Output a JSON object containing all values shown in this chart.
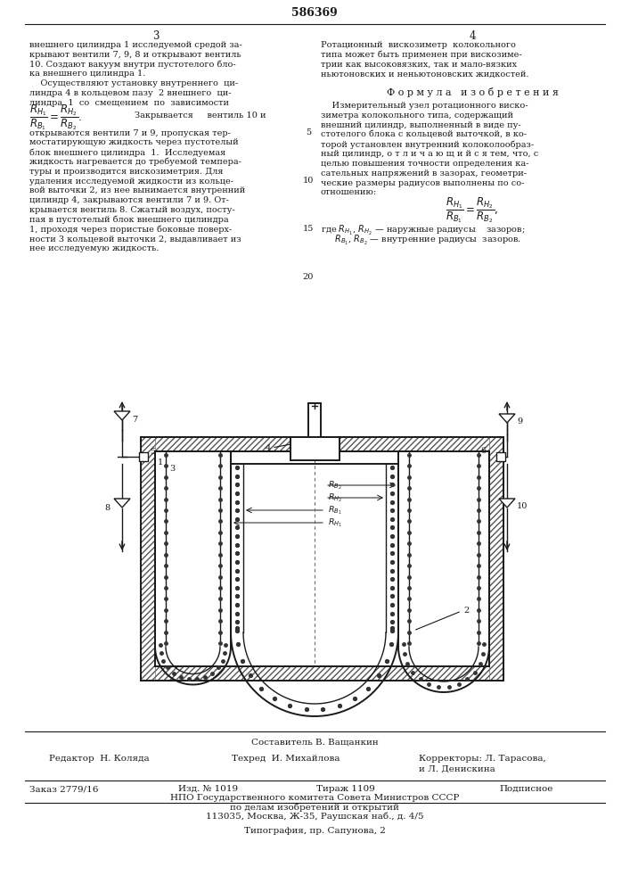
{
  "patent_number": "586369",
  "page_left": "3",
  "page_right": "4",
  "left_col_lines": [
    "внешнего цилиндра 1 исследуемой средой за-",
    "крывают вентили 7, 9, 8 и открывают вентиль",
    "10. Создают вакуум внутри пустотелого бло-",
    "ка внешнего цилиндра 1.",
    "    Осуществляют установку внутреннего  ци-",
    "линдра 4 в кольцевом пазу  2 внешнего  ци-",
    "линдра  1  со  смещением  по  зависимости"
  ],
  "formula_line": "Закрывается     вентиль 10 и",
  "left_col_lines2": [
    "открываются вентили 7 и 9, пропуская тер-",
    "мостатирующую жидкость через пустотелый",
    "блок внешнего цилиндра  1.  Исследуемая",
    "жидкость нагревается до требуемой темпера-",
    "туры и производится вискозиметрия. Для",
    "удаления исследуемой жидкости из кольце-",
    "вой выточки 2, из нее вынимается внутренний",
    "цилиндр 4, закрываются вентили 7 и 9. От-",
    "крывается вентиль 8. Сжатый воздух, посту-",
    "пая в пустотелый блок внешнего цилиндра",
    "1, проходя через пористые боковые поверх-",
    "ности 3 кольцевой выточки 2, выдавливает из",
    "нее исследуемую жидкость."
  ],
  "right_col_lines": [
    "Ротационный  вискозиметр  колокольного",
    "типа может быть применен при вискозиме-",
    "трии как высоковязких, так и мало-вязких",
    "ньютоновских и неньютоновских жидкостей."
  ],
  "formula_header": "Ф о р м у л а   и з о б р е т е н и я",
  "right_col_lines2": [
    "    Измерительный узел ротационного виско-",
    "зиметра колокольного типа, содержащий",
    "внешний цилиндр, выполненный в виде пу-",
    "стотелого блока с кольцевой выточкой, в ко-",
    "торой установлен внутренний колоколообраз-",
    "ный цилиндр, о т л и ч а ю щ и й с я тем, что, с",
    "целью повышения точности определения ка-",
    "сательных напряжений в зазорах, геометри-",
    "ческие размеры радиусов выполнены по со-",
    "отношению:"
  ],
  "formula_desc1": "где $R_{H_1}$, $R_{H_2}$ — наружные радиусы    зазоров;",
  "formula_desc2": "     $R_{B_1}$, $R_{B_2}$ — внутренние радиусы  зазоров.",
  "sestavitel": "Составитель В. Ващанкин",
  "redaktor": "Редактор  Н. Коляда",
  "tekhred": "Техред  И. Михайлова",
  "korrektory1": "Корректоры: Л. Тарасова,",
  "korrektory2": "и Л. Денискина",
  "zakaz": "Заказ 2779/16",
  "izd": "Изд. № 1019",
  "tirazh": "Тираж 1109",
  "podpisnoe": "Подписное",
  "npo1": "НПО Государственного комитета Совета Министров СССР",
  "npo2": "по делам изобретений и открытий",
  "npo3": "113035, Москва, Ж-35, Раушская наб., д. 4/5",
  "tipografia": "Типография, пр. Сапунова, 2"
}
